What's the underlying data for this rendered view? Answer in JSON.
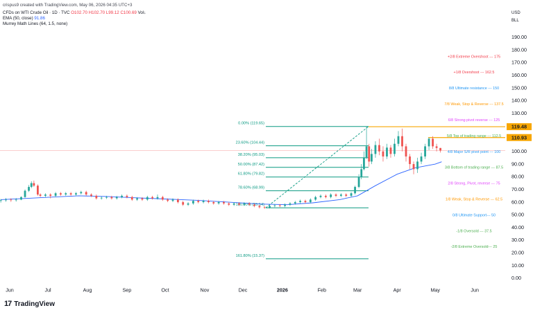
{
  "header": {
    "created": "crispus9 created with TradingView.com, May 06, 2026 04:35 UTC+3",
    "symbol": "CFDs on WTI Crude Oil · 1D · TVC",
    "ohlc": "O102.70 H102.70 L99.12 C100.69",
    "vol_label": "Vol↓",
    "ema_label": "EMA (50, close)",
    "ema_value": "91.86",
    "murrey_label": "Murrey Math Lines (64, 1.5, none)"
  },
  "currency": "USD",
  "unit": "BLL",
  "footer": {
    "logo_mark": "17",
    "logo_text": "TradingView"
  },
  "colors": {
    "up": "#26a69a",
    "down": "#ef5350",
    "ema": "#2962ff",
    "fib": "#089981",
    "price_line": "#f7a600",
    "last_price": "#ef5350"
  },
  "chart_data": {
    "type": "candlestick",
    "symbol": "CFDs on WTI Crude Oil",
    "timeframe": "1D",
    "ylim": [
      0,
      200
    ],
    "y_ticks": [
      "190.00",
      "180.00",
      "170.00",
      "160.00",
      "150.00",
      "140.00",
      "130.00",
      "120.00",
      "110.00",
      "100.00",
      "90.00",
      "80.00",
      "70.00",
      "60.00",
      "50.00",
      "40.00",
      "30.00",
      "20.00",
      "10.00",
      "0.00"
    ],
    "x_ticks": [
      "Jun",
      "Jul",
      "Aug",
      "Sep",
      "Oct",
      "Nov",
      "Dec",
      "2026",
      "Feb",
      "Mar",
      "Apr",
      "May",
      "Jun"
    ],
    "price_tags": [
      {
        "label": "119.48",
        "value": 119.48
      },
      {
        "label": "110.93",
        "value": 110.93
      }
    ],
    "last_price": 100.69,
    "fibonacci": [
      {
        "label": "0.00% (119.65)",
        "value": 119.65
      },
      {
        "label": "23.60% (104.44)",
        "value": 104.44
      },
      {
        "label": "38.20% (95.03)",
        "value": 95.03
      },
      {
        "label": "50.00% (87.42)",
        "value": 87.42
      },
      {
        "label": "61.80% (79.82)",
        "value": 79.82
      },
      {
        "label": "78.60% (68.99)",
        "value": 68.99
      },
      {
        "label": "100.00% (55.54)",
        "value": 55.54
      },
      {
        "label": "161.80% (15.37)",
        "value": 15.37
      }
    ],
    "murrey_lines": [
      {
        "label": "+2/8 Extreme Overshoot ---  175",
        "value": 175,
        "color": "#f23645"
      },
      {
        "label": "+1/8 Overshoot ---  162.5",
        "value": 162.5,
        "color": "#f23645"
      },
      {
        "label": "8/8 Ultimate resistance ---  150",
        "value": 150,
        "color": "#2196f3"
      },
      {
        "label": "7/8 Weak, Stop & Reverse ---  137.5",
        "value": 137.5,
        "color": "#ff9800"
      },
      {
        "label": "6/8 Strong pivot reverse ---  125",
        "value": 125,
        "color": "#e040fb"
      },
      {
        "label": "5/8 Top of trading range ---  112.5",
        "value": 112.5,
        "color": "#4caf50"
      },
      {
        "label": "4/8 Major S/R pivot point ---  100",
        "value": 100,
        "color": "#2196f3"
      },
      {
        "label": "3/8 Bottom of trading range ---  87.5",
        "value": 87.5,
        "color": "#4caf50"
      },
      {
        "label": "2/8 Strong, Pivot, reverse ---  75",
        "value": 75,
        "color": "#e040fb"
      },
      {
        "label": "1/8 Weak, Stop & Reverse ---  62.5",
        "value": 62.5,
        "color": "#ff9800"
      },
      {
        "label": "0/8 Ultimate Support---  50",
        "value": 50,
        "color": "#2196f3"
      },
      {
        "label": "-1/8 Oversold ---  37.5",
        "value": 37.5,
        "color": "#4caf50"
      },
      {
        "label": "-2/8 Extreme Oversold---  25",
        "value": 25,
        "color": "#4caf50"
      }
    ],
    "ema_series": [
      [
        "2025-05-25",
        62
      ],
      [
        "2025-06-15",
        63
      ],
      [
        "2025-07-05",
        64
      ],
      [
        "2025-07-25",
        65
      ],
      [
        "2025-08-15",
        64.5
      ],
      [
        "2025-09-05",
        63.5
      ],
      [
        "2025-10-01",
        62.5
      ],
      [
        "2025-10-25",
        61.5
      ],
      [
        "2025-11-20",
        60
      ],
      [
        "2025-12-15",
        58.5
      ],
      [
        "2026-01-05",
        58
      ],
      [
        "2026-01-25",
        59.5
      ],
      [
        "2026-02-15",
        62
      ],
      [
        "2026-03-01",
        65
      ],
      [
        "2026-03-15",
        73
      ],
      [
        "2026-04-01",
        82
      ],
      [
        "2026-04-15",
        87
      ],
      [
        "2026-05-01",
        90
      ],
      [
        "2026-05-06",
        91.86
      ]
    ],
    "candles": [
      [
        "2025-05-25",
        61,
        61.5,
        62.5,
        59.6
      ],
      [
        "2025-05-29",
        61.5,
        62,
        63.3,
        60.3
      ],
      [
        "2025-06-02",
        62,
        61.5,
        63.1,
        60.2
      ],
      [
        "2025-06-06",
        61.5,
        62,
        63.3,
        60.4
      ],
      [
        "2025-06-10",
        62,
        64,
        64.6,
        61.5
      ],
      [
        "2025-06-13",
        64,
        69,
        70,
        63.5
      ],
      [
        "2025-06-16",
        69,
        72,
        73.5,
        68
      ],
      [
        "2025-06-18",
        72,
        75,
        76.5,
        71
      ],
      [
        "2025-06-20",
        75,
        73,
        77,
        72
      ],
      [
        "2025-06-23",
        73,
        66,
        74,
        65
      ],
      [
        "2025-06-25",
        66,
        65,
        67,
        64
      ],
      [
        "2025-06-29",
        65,
        66,
        67,
        64
      ],
      [
        "2025-07-03",
        66,
        65,
        67,
        63
      ],
      [
        "2025-07-07",
        65,
        67,
        68,
        64
      ],
      [
        "2025-07-11",
        67,
        66,
        68,
        65
      ],
      [
        "2025-07-15",
        66,
        67,
        68,
        65
      ],
      [
        "2025-07-19",
        67,
        66,
        68,
        65
      ],
      [
        "2025-07-23",
        66,
        67,
        68,
        65
      ],
      [
        "2025-07-27",
        67,
        68,
        69,
        66
      ],
      [
        "2025-07-31",
        68,
        66,
        69,
        65
      ],
      [
        "2025-08-04",
        66,
        65,
        67,
        64
      ],
      [
        "2025-08-08",
        65,
        63,
        66,
        62
      ],
      [
        "2025-08-12",
        63,
        63.5,
        64.5,
        62
      ],
      [
        "2025-08-16",
        63.5,
        64,
        65,
        62.5
      ],
      [
        "2025-08-20",
        64,
        63,
        65,
        62
      ],
      [
        "2025-08-24",
        63,
        64,
        65,
        62
      ],
      [
        "2025-08-28",
        64,
        65,
        66,
        63
      ],
      [
        "2025-09-01",
        65,
        64,
        66,
        63
      ],
      [
        "2025-09-05",
        64,
        62,
        65,
        61
      ],
      [
        "2025-09-09",
        62,
        63,
        64,
        61
      ],
      [
        "2025-09-13",
        63,
        62,
        64,
        61
      ],
      [
        "2025-09-17",
        62,
        64,
        65,
        61
      ],
      [
        "2025-09-21",
        64,
        63,
        65,
        62
      ],
      [
        "2025-09-25",
        63,
        64,
        66,
        62
      ],
      [
        "2025-09-29",
        64,
        62,
        65,
        61
      ],
      [
        "2025-10-03",
        62,
        61,
        63,
        60
      ],
      [
        "2025-10-07",
        61,
        62,
        63,
        60
      ],
      [
        "2025-10-11",
        62,
        60,
        63,
        59
      ],
      [
        "2025-10-15",
        60,
        58,
        61,
        57
      ],
      [
        "2025-10-19",
        58,
        59,
        60,
        57
      ],
      [
        "2025-10-23",
        59,
        61,
        62,
        58
      ],
      [
        "2025-10-27",
        61,
        60,
        62,
        59
      ],
      [
        "2025-10-31",
        60,
        61,
        62,
        59
      ],
      [
        "2025-11-04",
        61,
        60,
        62,
        59
      ],
      [
        "2025-11-08",
        60,
        59,
        61,
        58
      ],
      [
        "2025-11-12",
        59,
        60,
        61,
        58
      ],
      [
        "2025-11-16",
        60,
        59,
        61,
        58
      ],
      [
        "2025-11-20",
        59,
        58,
        60,
        57
      ],
      [
        "2025-11-24",
        58,
        59,
        60,
        57
      ],
      [
        "2025-11-28",
        59,
        58,
        60,
        57
      ],
      [
        "2025-12-02",
        58,
        59,
        60,
        57
      ],
      [
        "2025-12-06",
        59,
        58,
        60,
        57
      ],
      [
        "2025-12-10",
        58,
        57,
        59,
        56
      ],
      [
        "2025-12-14",
        57,
        56,
        58,
        55
      ],
      [
        "2025-12-18",
        56,
        55.5,
        57,
        54.8
      ],
      [
        "2025-12-22",
        55.5,
        57,
        58,
        55
      ],
      [
        "2025-12-26",
        57,
        57.5,
        58.5,
        56
      ],
      [
        "2025-12-30",
        57.5,
        57,
        58.5,
        56
      ],
      [
        "2026-01-03",
        57,
        58,
        59,
        56
      ],
      [
        "2026-01-07",
        58,
        59,
        60,
        57
      ],
      [
        "2026-01-11",
        59,
        60,
        61,
        58
      ],
      [
        "2026-01-15",
        60,
        61,
        62,
        59
      ],
      [
        "2026-01-19",
        61,
        60,
        62,
        59
      ],
      [
        "2026-01-23",
        60,
        62,
        63,
        59
      ],
      [
        "2026-01-27",
        62,
        64,
        65,
        61
      ],
      [
        "2026-01-31",
        64,
        65,
        66,
        63
      ],
      [
        "2026-02-04",
        65,
        64,
        66,
        63
      ],
      [
        "2026-02-08",
        64,
        66,
        67,
        63
      ],
      [
        "2026-02-12",
        66,
        65,
        67,
        64
      ],
      [
        "2026-02-16",
        65,
        66,
        67,
        64
      ],
      [
        "2026-02-20",
        66,
        65,
        67,
        64
      ],
      [
        "2026-02-24",
        65,
        67,
        68,
        64
      ],
      [
        "2026-02-27",
        67,
        72,
        73,
        66
      ],
      [
        "2026-03-02",
        72,
        80,
        82,
        71
      ],
      [
        "2026-03-04",
        80,
        86,
        90,
        78
      ],
      [
        "2026-03-06",
        86,
        95,
        100,
        85
      ],
      [
        "2026-03-08",
        95,
        104,
        119.5,
        94
      ],
      [
        "2026-03-10",
        104,
        92,
        106,
        88
      ],
      [
        "2026-03-12",
        92,
        98,
        102,
        90
      ],
      [
        "2026-03-15",
        98,
        105,
        108,
        95
      ],
      [
        "2026-03-18",
        105,
        100,
        110,
        97
      ],
      [
        "2026-03-21",
        100,
        96,
        104,
        92
      ],
      [
        "2026-03-24",
        96,
        103,
        106,
        94
      ],
      [
        "2026-03-27",
        103,
        98,
        105,
        95
      ],
      [
        "2026-03-30",
        98,
        106,
        110,
        96
      ],
      [
        "2026-04-02",
        106,
        112,
        116,
        104
      ],
      [
        "2026-04-05",
        112,
        104,
        118,
        100
      ],
      [
        "2026-04-08",
        104,
        96,
        106,
        92
      ],
      [
        "2026-04-11",
        96,
        90,
        98,
        86
      ],
      [
        "2026-04-14",
        90,
        86,
        92,
        82
      ],
      [
        "2026-04-17",
        86,
        92,
        95,
        83
      ],
      [
        "2026-04-20",
        92,
        96,
        99,
        90
      ],
      [
        "2026-04-23",
        96,
        104,
        106,
        94
      ],
      [
        "2026-04-26",
        104,
        110,
        111,
        101
      ],
      [
        "2026-04-29",
        110,
        104,
        112,
        102
      ],
      [
        "2026-05-02",
        104,
        102.7,
        106,
        100
      ],
      [
        "2026-05-05",
        102.7,
        100.69,
        102.7,
        99.12
      ]
    ]
  }
}
